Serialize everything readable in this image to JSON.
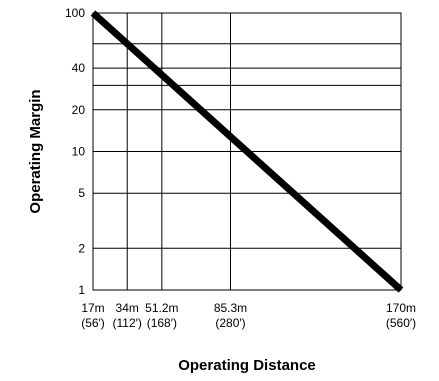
{
  "chart_data": {
    "type": "line",
    "title": "",
    "xlabel": "Operating Distance",
    "ylabel": "Operating Margin",
    "y_scale": "log",
    "grid": true,
    "y_ticks": [
      {
        "value": 100,
        "label": "100"
      },
      {
        "value": 40,
        "label": "40"
      },
      {
        "value": 20,
        "label": "20"
      },
      {
        "value": 10,
        "label": "10"
      },
      {
        "value": 5,
        "label": "5"
      },
      {
        "value": 2,
        "label": "2"
      },
      {
        "value": 1,
        "label": "1"
      }
    ],
    "y_gridlines": [
      100,
      60,
      40,
      30,
      20,
      10,
      5,
      2,
      1
    ],
    "x_ticks": [
      {
        "value": 17,
        "label": "17m",
        "sublabel": "(56′)"
      },
      {
        "value": 34,
        "label": "34m",
        "sublabel": "(112′)"
      },
      {
        "value": 51.2,
        "label": "51.2m",
        "sublabel": "(168′)"
      },
      {
        "value": 85.3,
        "label": "85.3m",
        "sublabel": "(280′)"
      },
      {
        "value": 170,
        "label": "170m",
        "sublabel": "(560′)"
      }
    ],
    "series": [
      {
        "points": [
          {
            "x": 17,
            "y": 100
          },
          {
            "x": 170,
            "y": 1
          }
        ]
      }
    ],
    "line_color": "#000000"
  }
}
